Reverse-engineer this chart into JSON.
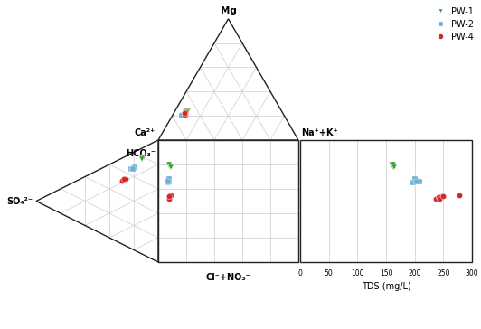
{
  "legend_labels": [
    "PW-1",
    "PW-2",
    "PW-4"
  ],
  "tds_xlabel": "TDS (mg/L)",
  "tds_xticks": [
    0,
    50,
    100,
    150,
    200,
    250,
    300
  ],
  "colors": {
    "PW1": "#2ca02c",
    "PW2": "#6baed6",
    "PW4": "#d62728"
  },
  "grid_color": "#cccccc",
  "edge_color": "#222222",
  "bg_color": "#ffffff",
  "pw1_cat_Ca": [
    68,
    67,
    69,
    68,
    68
  ],
  "pw1_cat_Na": [
    8,
    9,
    8,
    8,
    9
  ],
  "pw1_an_HCO3": [
    80,
    78,
    79,
    80,
    78
  ],
  "pw1_an_SO4": [
    12,
    13,
    13,
    12,
    13
  ],
  "pw1_tds": [
    160,
    163,
    161,
    162,
    164
  ],
  "pw2_cat_Ca": [
    72,
    73,
    72,
    71,
    73
  ],
  "pw2_cat_Na": [
    7,
    7,
    8,
    8,
    7
  ],
  "pw2_an_HCO3": [
    65,
    67,
    66,
    68,
    66
  ],
  "pw2_an_SO4": [
    22,
    20,
    21,
    19,
    21
  ],
  "pw2_tds": [
    197,
    203,
    208,
    200,
    204
  ],
  "pw4_cat_Ca": [
    70,
    71,
    69,
    70,
    71,
    70
  ],
  "pw4_cat_Na": [
    8,
    8,
    8,
    9,
    8,
    8
  ],
  "pw4_an_HCO3": [
    52,
    54,
    53,
    55,
    52,
    54
  ],
  "pw4_an_SO4": [
    30,
    28,
    29,
    27,
    30,
    28
  ],
  "pw4_tds": [
    237,
    248,
    241,
    278,
    243,
    250
  ]
}
